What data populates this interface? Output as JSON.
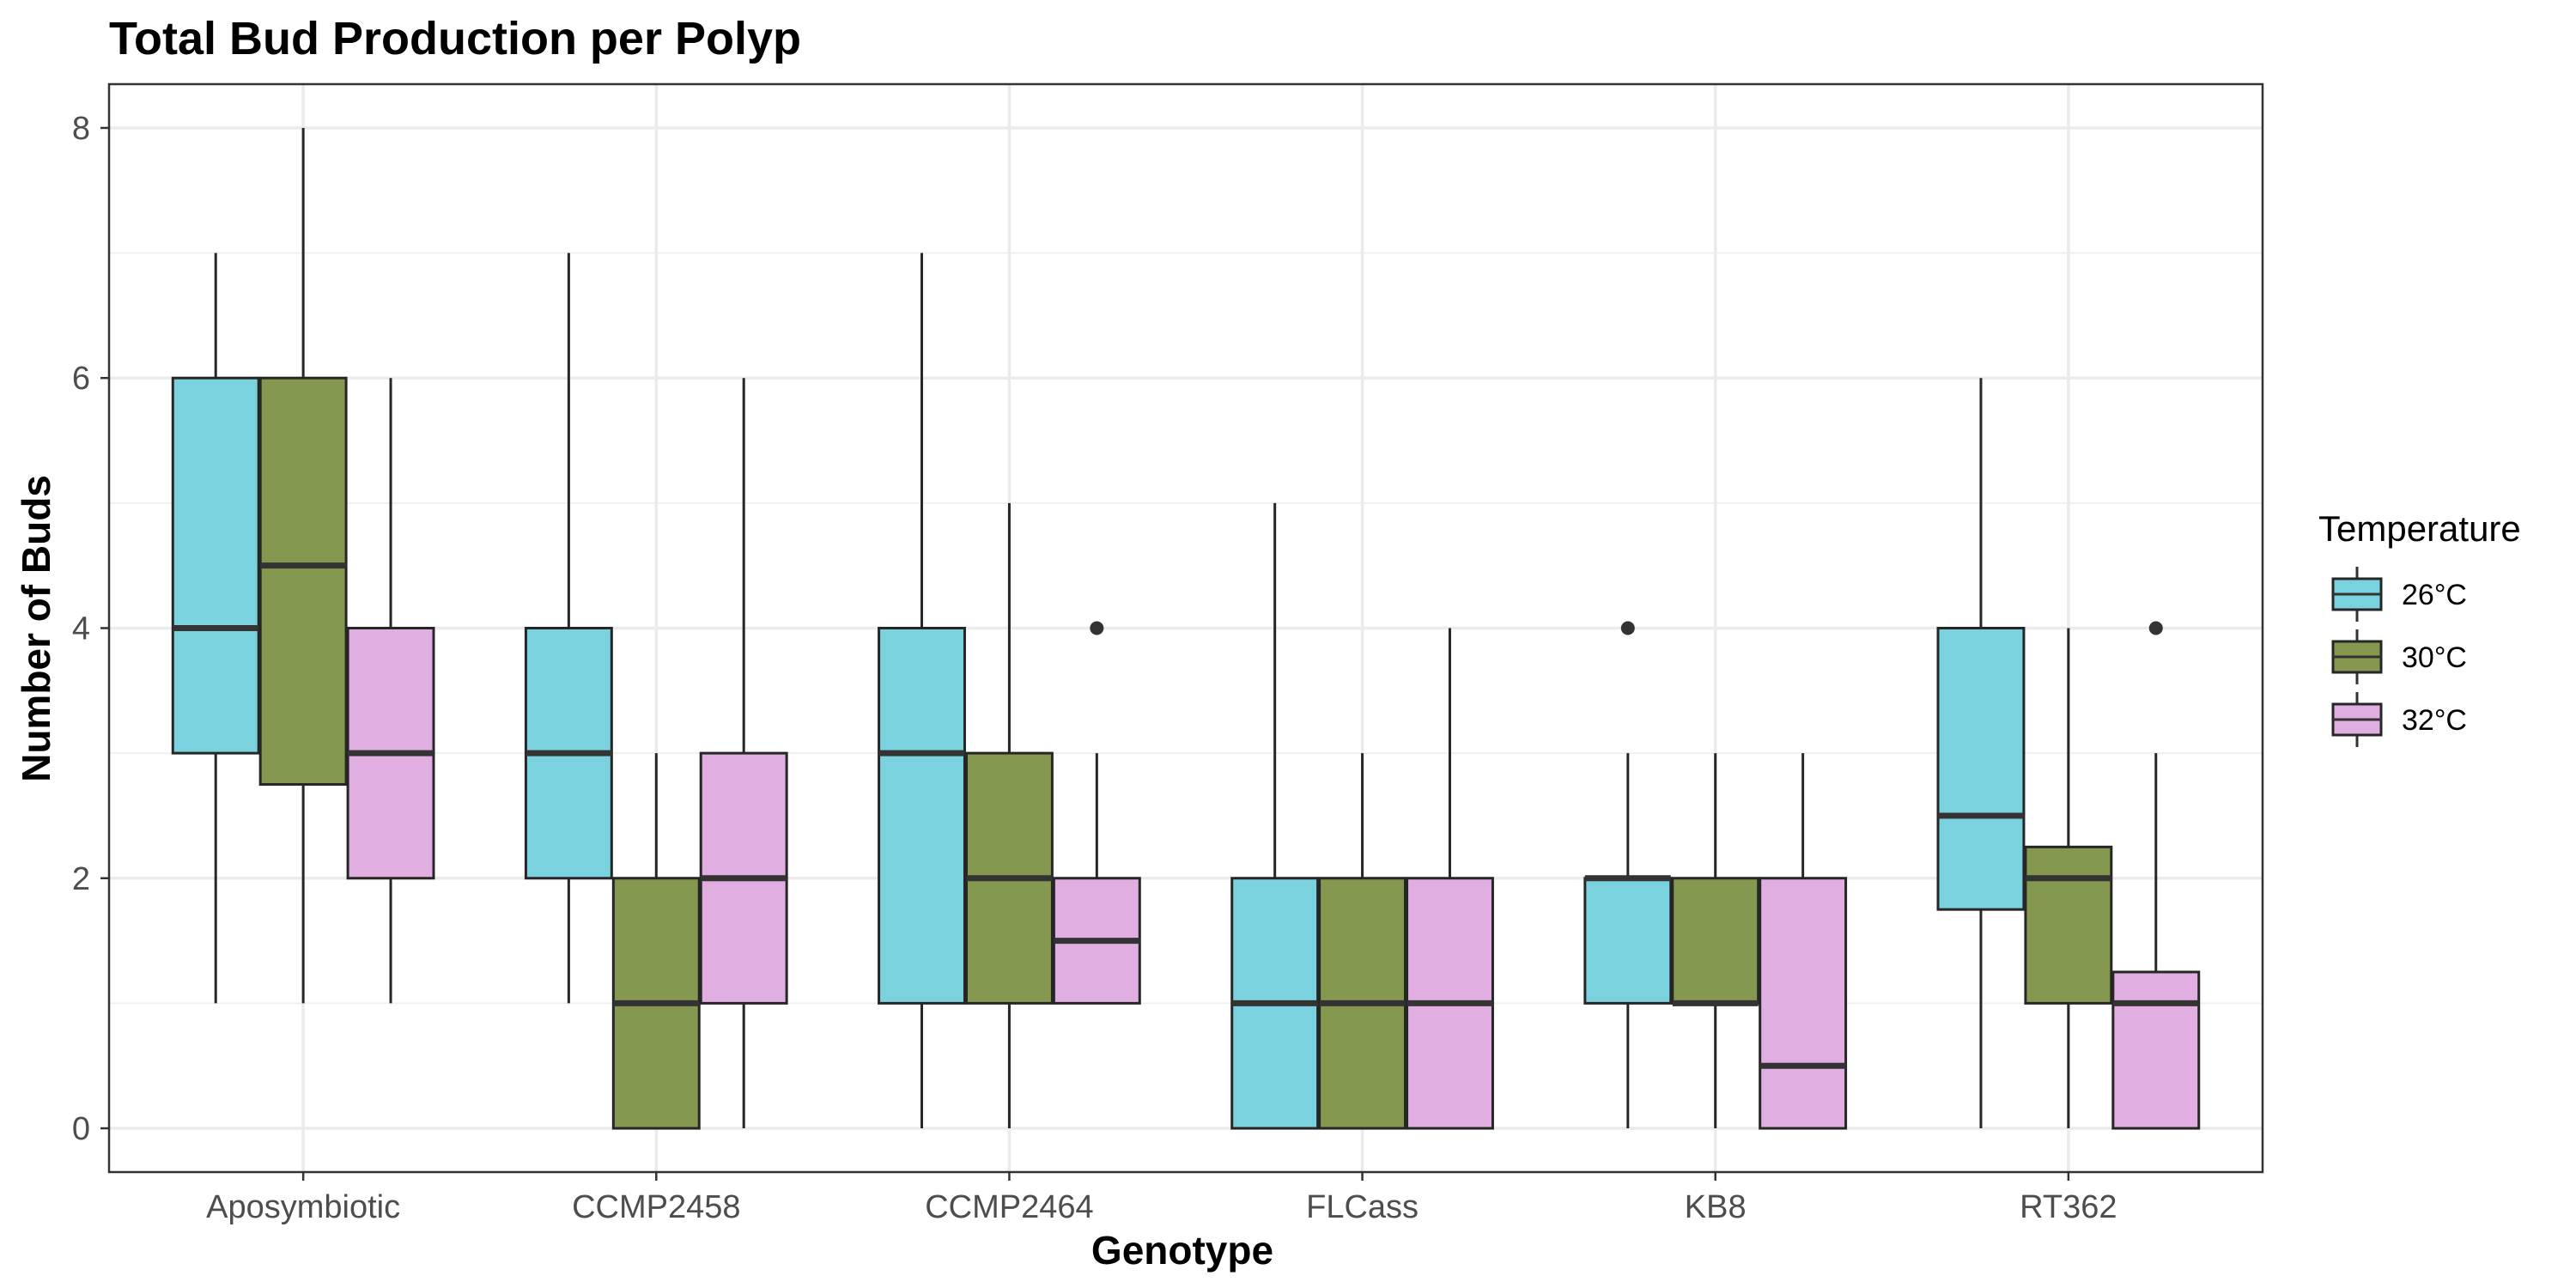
{
  "chart_data": {
    "type": "boxplot",
    "title": "Total Bud Production per Polyp",
    "xlabel": "Genotype",
    "ylabel": "Number of Buds",
    "ylim": [
      -0.35,
      8.35
    ],
    "yticks": [
      0,
      2,
      4,
      6,
      8
    ],
    "grid": true,
    "legend": {
      "title": "Temperature",
      "position": "right"
    },
    "categories": [
      "Aposymbiotic",
      "CCMP2458",
      "CCMP2464",
      "FLCass",
      "KB8",
      "RT362"
    ],
    "series": [
      {
        "name": "26°C",
        "color": "#79D2DE",
        "boxes": [
          {
            "min": 1,
            "q1": 3,
            "median": 4,
            "q3": 6,
            "max": 7,
            "outliers": []
          },
          {
            "min": 1,
            "q1": 2,
            "median": 3,
            "q3": 4,
            "max": 7,
            "outliers": []
          },
          {
            "min": 0,
            "q1": 1,
            "median": 3,
            "q3": 4,
            "max": 7,
            "outliers": []
          },
          {
            "min": 0,
            "q1": 0,
            "median": 1,
            "q3": 2,
            "max": 5,
            "outliers": []
          },
          {
            "min": 0,
            "q1": 1,
            "median": 2,
            "q3": 2,
            "max": 3,
            "outliers": [
              4
            ]
          },
          {
            "min": 0,
            "q1": 1.75,
            "median": 2.5,
            "q3": 4,
            "max": 6,
            "outliers": []
          }
        ]
      },
      {
        "name": "30°C",
        "color": "#84994F",
        "boxes": [
          {
            "min": 1,
            "q1": 2.75,
            "median": 4.5,
            "q3": 6,
            "max": 8,
            "outliers": []
          },
          {
            "min": 0,
            "q1": 0,
            "median": 1,
            "q3": 2,
            "max": 3,
            "outliers": []
          },
          {
            "min": 0,
            "q1": 1,
            "median": 2,
            "q3": 3,
            "max": 5,
            "outliers": []
          },
          {
            "min": 0,
            "q1": 0,
            "median": 1,
            "q3": 2,
            "max": 3,
            "outliers": []
          },
          {
            "min": 0,
            "q1": 1,
            "median": 1,
            "q3": 2,
            "max": 3,
            "outliers": []
          },
          {
            "min": 0,
            "q1": 1,
            "median": 2,
            "q3": 2.25,
            "max": 4,
            "outliers": []
          }
        ]
      },
      {
        "name": "32°C",
        "color": "#E0AEE1",
        "boxes": [
          {
            "min": 1,
            "q1": 2,
            "median": 3,
            "q3": 4,
            "max": 6,
            "outliers": []
          },
          {
            "min": 0,
            "q1": 1,
            "median": 2,
            "q3": 3,
            "max": 6,
            "outliers": []
          },
          {
            "min": 1,
            "q1": 1,
            "median": 1.5,
            "q3": 2,
            "max": 3,
            "outliers": [
              4
            ]
          },
          {
            "min": 0,
            "q1": 0,
            "median": 1,
            "q3": 2,
            "max": 4,
            "outliers": []
          },
          {
            "min": 0,
            "q1": 0,
            "median": 0.5,
            "q3": 2,
            "max": 3,
            "outliers": []
          },
          {
            "min": 0,
            "q1": 0,
            "median": 1,
            "q3": 1.25,
            "max": 3,
            "outliers": [
              4
            ]
          }
        ]
      }
    ]
  }
}
